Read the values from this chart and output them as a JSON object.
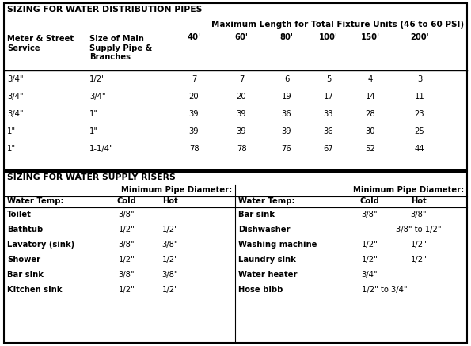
{
  "title1": "SIZING FOR WATER DISTRIBUTION PIPES",
  "subtitle": "Maximum Length for Total Fixture Units (46 to 60 PSI)",
  "dist_col_headers_0": "Meter & Street\nService",
  "dist_col_headers_1": "Size of Main\nSupply Pipe &\nBranches",
  "dist_col_headers_dist": [
    "40'",
    "60'",
    "80'",
    "100'",
    "150'",
    "200'"
  ],
  "dist_rows": [
    [
      "3/4\"",
      "1/2\"",
      "7",
      "7",
      "6",
      "5",
      "4",
      "3"
    ],
    [
      "3/4\"",
      "3/4\"",
      "20",
      "20",
      "19",
      "17",
      "14",
      "11"
    ],
    [
      "3/4\"",
      "1\"",
      "39",
      "39",
      "36",
      "33",
      "28",
      "23"
    ],
    [
      "1\"",
      "1\"",
      "39",
      "39",
      "39",
      "36",
      "30",
      "25"
    ],
    [
      "1\"",
      "1-1/4\"",
      "78",
      "78",
      "76",
      "67",
      "52",
      "44"
    ]
  ],
  "title2": "SIZING FOR WATER SUPPLY RISERS",
  "riser_left_rows": [
    [
      "Toilet",
      "3/8\"",
      ""
    ],
    [
      "Bathtub",
      "1/2\"",
      "1/2\""
    ],
    [
      "Lavatory (sink)",
      "3/8\"",
      "3/8\""
    ],
    [
      "Shower",
      "1/2\"",
      "1/2\""
    ],
    [
      "Bar sink",
      "3/8\"",
      "3/8\""
    ],
    [
      "Kitchen sink",
      "1/2\"",
      "1/2\""
    ]
  ],
  "riser_right_rows": [
    [
      "Bar sink",
      "3/8\"",
      "3/8\""
    ],
    [
      "Dishwasher",
      "",
      "3/8\" to 1/2\""
    ],
    [
      "Washing machine",
      "1/2\"",
      "1/2\""
    ],
    [
      "Laundry sink",
      "1/2\"",
      "1/2\""
    ],
    [
      "Water heater",
      "3/4\"",
      ""
    ],
    [
      "Hose bibb",
      "1/2\" to 3/4\"",
      ""
    ]
  ],
  "bg_color": "#ffffff"
}
